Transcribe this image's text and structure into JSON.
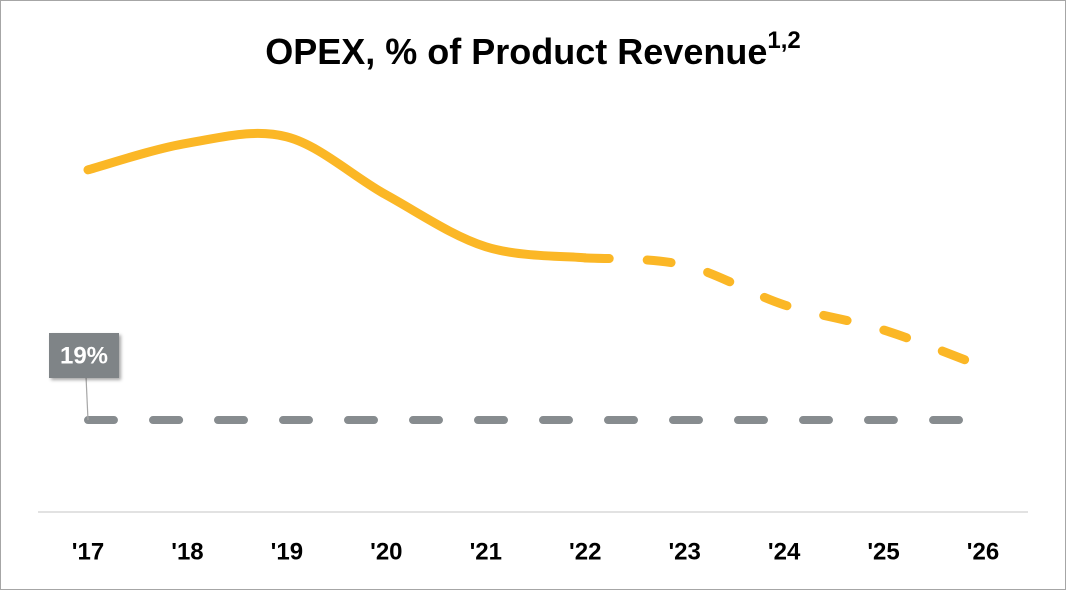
{
  "chart_data": {
    "type": "line",
    "title": "OPEX, % of Product Revenue",
    "title_superscript": "1,2",
    "categories": [
      "'17",
      "'18",
      "'19",
      "'20",
      "'21",
      "'22",
      "'23",
      "'24",
      "'25",
      "'26"
    ],
    "ylim": [
      0,
      100
    ],
    "series": [
      {
        "color": "#fbb726",
        "style": "solid",
        "values": [
          70.7,
          76.2,
          77.5,
          65.5,
          54.8,
          52.5,
          null,
          null,
          null,
          null
        ]
      },
      {
        "color": "#fbb726",
        "style": "dashed",
        "values": [
          null,
          null,
          null,
          null,
          null,
          52.5,
          51,
          42.8,
          37.6,
          30
        ]
      },
      {
        "color": "#878c8f",
        "style": "dashed",
        "values": [
          19,
          19,
          19,
          19,
          19,
          19,
          19,
          19,
          19,
          19
        ],
        "value_labels": [
          "19%",
          null,
          null,
          null,
          null,
          null,
          null,
          null,
          null,
          null
        ]
      }
    ]
  }
}
